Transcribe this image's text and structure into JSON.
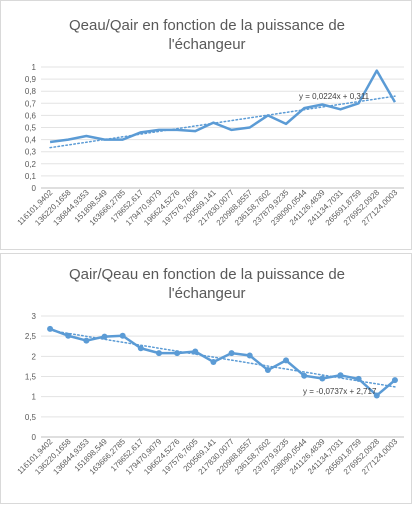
{
  "chart_data": [
    {
      "type": "line",
      "title_lines": [
        "Qeau/Qair en fonction de la puissance de",
        "l'échangeur"
      ],
      "categories": [
        "116101,9402",
        "136220,1658",
        "136844,9353",
        "151898,549",
        "163666,2785",
        "178652,617",
        "179470,9079",
        "196624,5276",
        "197576,7605",
        "200569,141",
        "217830,0077",
        "220988,8557",
        "236158,7602",
        "237879,9235",
        "238090,0544",
        "241126,4839",
        "241134,7031",
        "265691,8759",
        "276952,0928",
        "277124,0003"
      ],
      "y_ticks": [
        "0",
        "0,1",
        "0,2",
        "0,3",
        "0,4",
        "0,5",
        "0,6",
        "0,7",
        "0,8",
        "0,9",
        "1"
      ],
      "ylim": [
        0,
        1
      ],
      "markers": false,
      "series": [
        {
          "values": [
            0.38,
            0.4,
            0.43,
            0.4,
            0.4,
            0.46,
            0.48,
            0.48,
            0.47,
            0.54,
            0.48,
            0.5,
            0.6,
            0.53,
            0.66,
            0.69,
            0.65,
            0.7,
            0.97,
            0.71
          ]
        }
      ],
      "trendline": {
        "slope": 0.0224,
        "intercept": 0.311,
        "label": "y = 0,0224x + 0,311"
      },
      "line_color": "#5b9bd5",
      "grid": true
    },
    {
      "type": "line",
      "title_lines": [
        "Qair/Qeau en fonction de la puissance de",
        "l'échangeur"
      ],
      "categories": [
        "116101,9402",
        "136220,1658",
        "136844,9353",
        "151898,549",
        "163666,2785",
        "178652,617",
        "179470,9079",
        "196624,5276",
        "197576,7605",
        "200569,141",
        "217830,0077",
        "220988,8557",
        "236158,7602",
        "237879,9235",
        "238090,0544",
        "241126,4839",
        "241134,7031",
        "265691,8759",
        "276952,0928",
        "277124,0003"
      ],
      "y_ticks": [
        "0",
        "0,5",
        "1",
        "1,5",
        "2",
        "2,5",
        "3"
      ],
      "ylim": [
        0,
        3
      ],
      "markers": true,
      "series": [
        {
          "values": [
            2.68,
            2.51,
            2.39,
            2.49,
            2.51,
            2.2,
            2.08,
            2.08,
            2.12,
            1.86,
            2.08,
            2.02,
            1.66,
            1.9,
            1.52,
            1.45,
            1.53,
            1.44,
            1.03,
            1.41
          ]
        }
      ],
      "trendline": {
        "slope": -0.0737,
        "intercept": 2.7172,
        "label": "y = -0,0737x + 2,717"
      },
      "line_color": "#5b9bd5",
      "grid": true
    }
  ]
}
